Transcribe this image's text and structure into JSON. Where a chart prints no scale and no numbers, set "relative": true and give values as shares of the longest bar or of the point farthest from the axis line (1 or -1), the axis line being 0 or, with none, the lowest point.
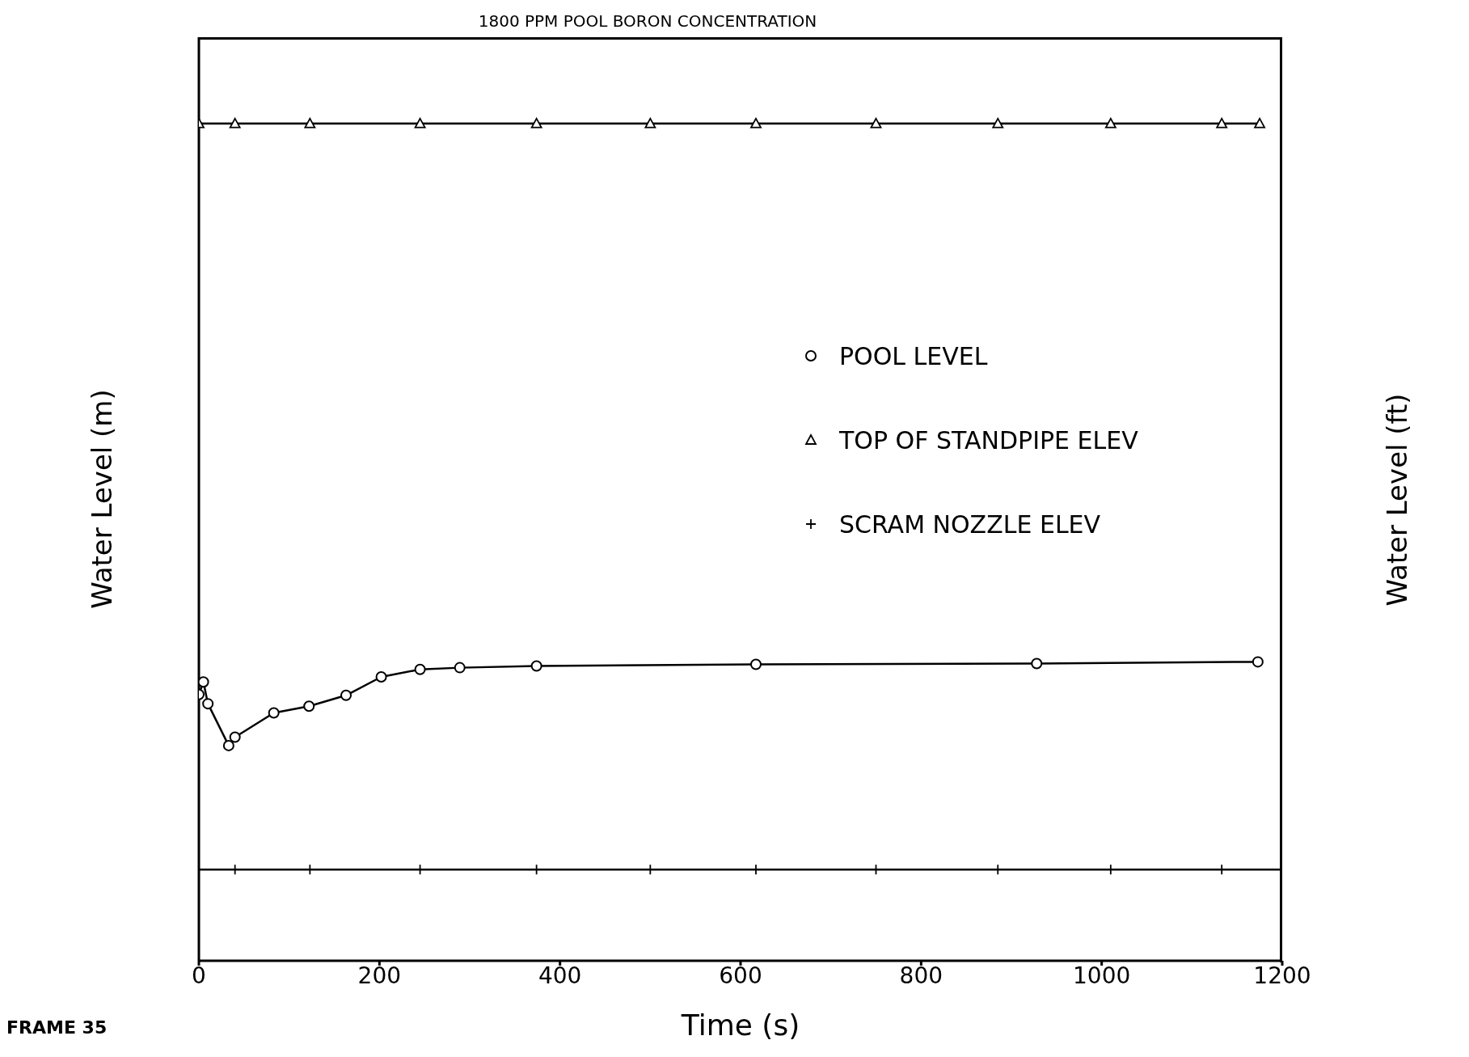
{
  "chart_data": {
    "type": "line",
    "title": "1800 PPM POOL BORON CONCENTRATION",
    "xlabel": "Time (s)",
    "ylabel": "Water Level (m)",
    "y2label": "Water Level (ft)",
    "annotations": [
      "FRAME 35"
    ],
    "relative": true,
    "xlim": [
      0,
      1200
    ],
    "xticks": [
      0,
      200,
      400,
      600,
      800,
      1000,
      1200
    ],
    "legend": "right",
    "series": [
      {
        "name": "POOL LEVEL",
        "color": "#000000",
        "marker": "circle",
        "x": [
          0,
          5,
          10,
          33,
          40,
          83,
          122,
          163,
          202,
          245,
          289,
          374,
          617,
          928,
          1173
        ],
        "values": [
          0.318,
          0.333,
          0.307,
          0.257,
          0.267,
          0.296,
          0.304,
          0.317,
          0.339,
          0.348,
          0.35,
          0.352,
          0.354,
          0.355,
          0.357
        ]
      },
      {
        "name": "TOP OF STANDPIPE ELEV",
        "color": "#000000",
        "marker": "triangle",
        "x": [
          0,
          40,
          123,
          245,
          374,
          500,
          617,
          750,
          885,
          1010,
          1133,
          1175
        ],
        "values": [
          1,
          1,
          1,
          1,
          1,
          1,
          1,
          1,
          1,
          1,
          1,
          1
        ]
      },
      {
        "name": "SCRAM NOZZLE ELEV",
        "color": "#000000",
        "marker": "cross",
        "x": [
          0,
          40,
          123,
          245,
          374,
          500,
          617,
          750,
          885,
          1010,
          1133,
          1200
        ],
        "values": [
          0.109,
          0.109,
          0.109,
          0.109,
          0.109,
          0.109,
          0.109,
          0.109,
          0.109,
          0.109,
          0.109,
          0.109
        ]
      }
    ]
  }
}
